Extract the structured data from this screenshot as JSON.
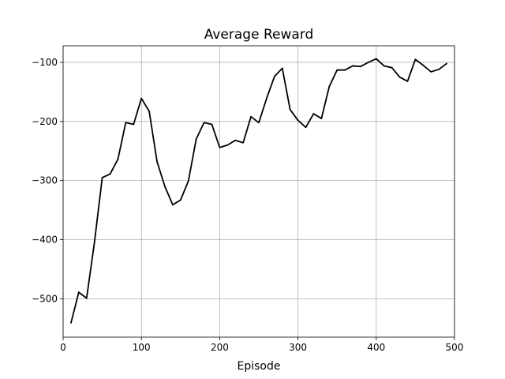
{
  "chart_data": {
    "type": "line",
    "title": "Average Reward",
    "xlabel": "Episode",
    "ylabel": "",
    "xlim": [
      0,
      500
    ],
    "ylim": [
      -565,
      -72
    ],
    "x_ticks": [
      0,
      100,
      200,
      300,
      400,
      500
    ],
    "y_ticks": [
      -500,
      -400,
      -300,
      -200,
      -100
    ],
    "x_tick_labels": [
      "0",
      "100",
      "200",
      "300",
      "400",
      "500"
    ],
    "y_tick_labels": [
      "−500",
      "−400",
      "−300",
      "−200",
      "−100"
    ],
    "grid": true,
    "line_color": "#000000",
    "series": [
      {
        "x": [
          10,
          20,
          30,
          40,
          50,
          60,
          70,
          80,
          90,
          100,
          110,
          120,
          130,
          140,
          150,
          160,
          170,
          180,
          190,
          200,
          210,
          220,
          230,
          240,
          250,
          260,
          270,
          280,
          290,
          300,
          310,
          320,
          330,
          340,
          350,
          360,
          370,
          380,
          390,
          400,
          410,
          420,
          430,
          440,
          450,
          460,
          470,
          480,
          490
        ],
        "values": [
          -541,
          -489,
          -499,
          -405,
          -295,
          -289,
          -264,
          -202,
          -205,
          -161,
          -183,
          -268,
          -310,
          -341,
          -333,
          -301,
          -230,
          -202,
          -205,
          -244,
          -240,
          -232,
          -236,
          -192,
          -202,
          -161,
          -124,
          -110,
          -180,
          -198,
          -210,
          -187,
          -195,
          -141,
          -113,
          -113,
          -106,
          -107,
          -100,
          -94,
          -106,
          -109,
          -125,
          -132,
          -95,
          -105,
          -116,
          -112,
          -102
        ]
      }
    ]
  }
}
